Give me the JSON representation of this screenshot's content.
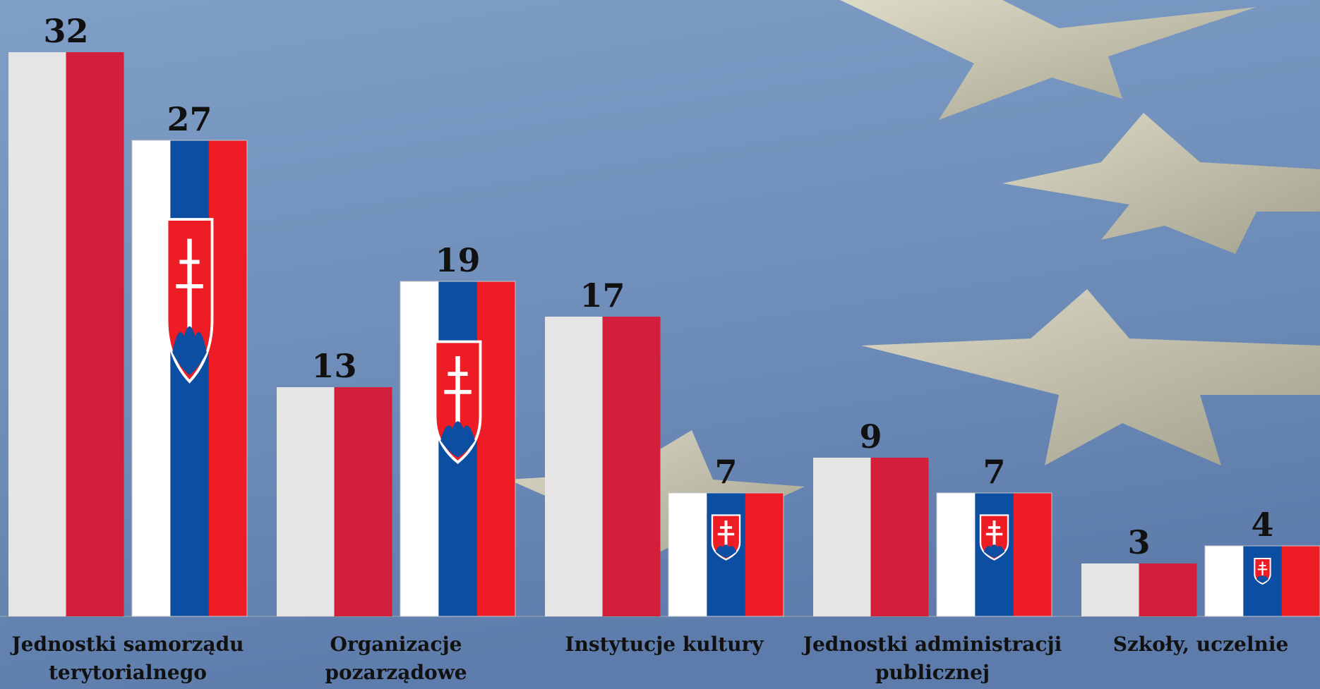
{
  "chart_data": {
    "type": "bar",
    "categories": [
      "Jednostki samorządu\nterytorialnego",
      "Organizacje\npozarządowe",
      "Instytucje kultury",
      "Jednostki administracji\npublicznej",
      "Szkoły, uczelnie"
    ],
    "series": [
      {
        "colors": [
          "#e6e4e4",
          "#d21f3c"
        ],
        "values": [
          32,
          13,
          17,
          9,
          3
        ]
      },
      {
        "colors": [
          "#ffffff",
          "#0b4ea2",
          "#ee1c25"
        ],
        "values": [
          27,
          19,
          7,
          7,
          4
        ]
      }
    ],
    "ylim": [
      0,
      34
    ]
  }
}
